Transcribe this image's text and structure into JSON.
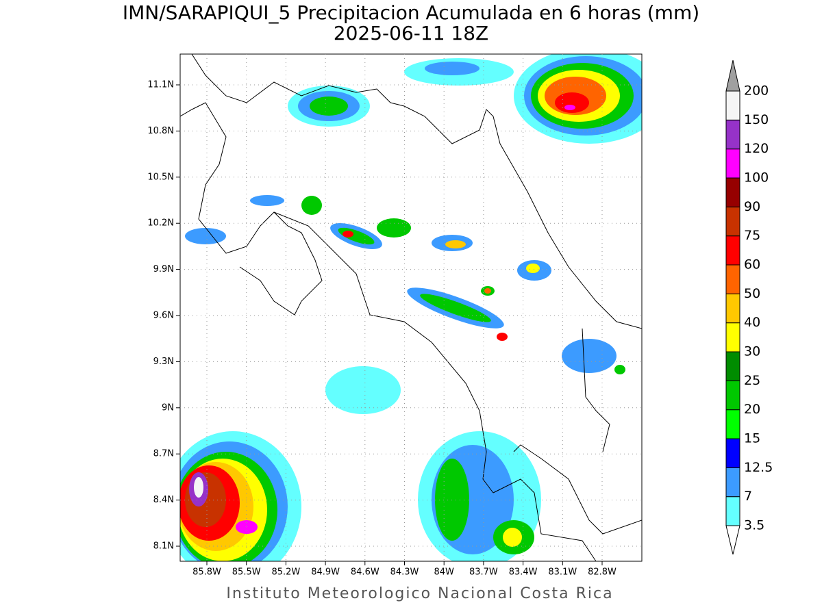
{
  "header": {
    "title": "IMN/SARAPIQUI_5 Precipitacion Acumulada en 6 horas (mm)",
    "subtitle": "2025-06-11 18Z"
  },
  "map": {
    "lat_labels": [
      "11.1N",
      "10.8N",
      "10.5N",
      "10.2N",
      "9.9N",
      "9.6N",
      "9.3N",
      "9N",
      "8.7N",
      "8.4N",
      "8.1N"
    ],
    "lon_labels": [
      "85.8W",
      "85.5W",
      "85.2W",
      "84.9W",
      "84.6W",
      "84.3W",
      "84W",
      "83.7W",
      "83.4W",
      "83.1W",
      "82.8W"
    ]
  },
  "legend": {
    "labels": [
      3.5,
      7,
      12.5,
      15,
      20,
      25,
      30,
      40,
      50,
      60,
      75,
      90,
      100,
      120,
      150,
      200
    ],
    "colors": [
      "#64ffff",
      "#3c9bff",
      "#0000ff",
      "#00ff00",
      "#00c800",
      "#008c00",
      "#ffff00",
      "#ffc800",
      "#ff6400",
      "#ff0000",
      "#c83200",
      "#960000",
      "#ff00ff",
      "#9632c8",
      "#f5f5f5"
    ],
    "under_color": "#ffffff",
    "over_color": "#a0a0a0"
  },
  "footer": "Instituto Meteorologico Nacional Costa Rica"
}
